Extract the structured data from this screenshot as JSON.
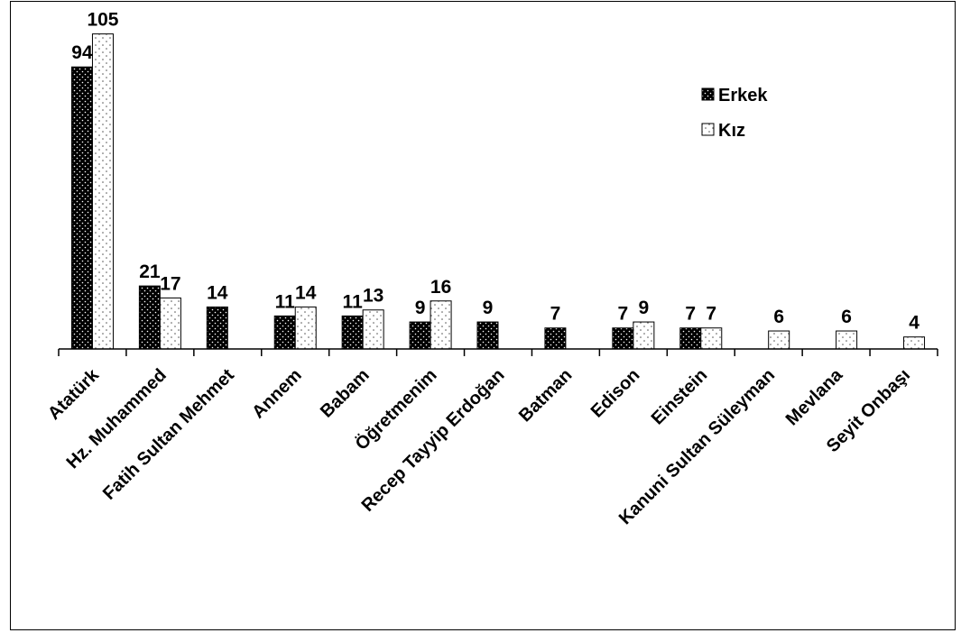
{
  "chart_data": {
    "type": "bar",
    "categories": [
      "Atatürk",
      "Hz. Muhammed",
      "Fatih Sultan Mehmet",
      "Annem",
      "Babam",
      "Öğretmenim",
      "Recep Tayyip Erdoğan",
      "Batman",
      "Edison",
      "Einstein",
      "Kanuni Sultan Süleyman",
      "Mevlana",
      "Seyit Onbaşı"
    ],
    "series": [
      {
        "name": "Erkek",
        "values": [
          94,
          21,
          14,
          11,
          11,
          9,
          9,
          7,
          7,
          7,
          null,
          null,
          null
        ],
        "pattern": "black-dotted"
      },
      {
        "name": "Kız",
        "values": [
          105,
          17,
          null,
          14,
          13,
          16,
          null,
          null,
          9,
          7,
          6,
          6,
          4
        ],
        "pattern": "white-dotted"
      }
    ],
    "ylim": [
      0,
      110
    ],
    "grid": false,
    "legend_position": "top-right"
  }
}
